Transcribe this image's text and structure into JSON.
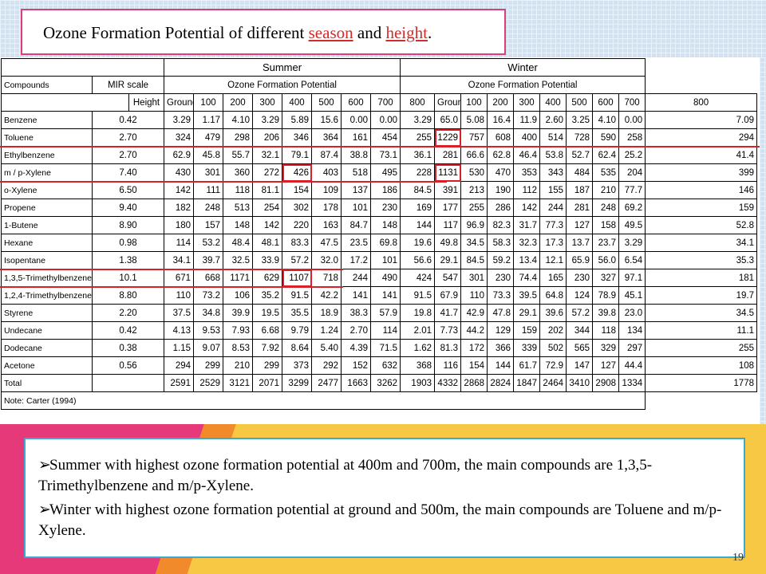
{
  "slide": {
    "title_prefix": "Ozone Formation Potential of different ",
    "title_word1": "season",
    "title_mid": " and ",
    "title_word2": "height",
    "title_suffix": ".",
    "page_number": "19"
  },
  "table": {
    "season_summer": "Summer",
    "season_winter": "Winter",
    "header_compounds": "Compounds",
    "header_mir": "MIR scale",
    "header_ofp_summer": "Ozone Formation Potential",
    "header_ofp_winter": "Ozone Formation Potential",
    "height_label": "Height",
    "heights": [
      "Ground",
      "100",
      "200",
      "300",
      "400",
      "500",
      "600",
      "700",
      "800"
    ],
    "rows": [
      {
        "name": "Benzene",
        "mir": "0.42",
        "summer": [
          "3.29",
          "1.17",
          "4.10",
          "3.29",
          "5.89",
          "15.6",
          "0.00",
          "0.00",
          "3.29"
        ],
        "winter": [
          "65.0",
          "5.08",
          "16.4",
          "11.9",
          "2.60",
          "3.25",
          "4.10",
          "0.00",
          "7.09"
        ]
      },
      {
        "name": "Toluene",
        "mir": "2.70",
        "summer": [
          "324",
          "479",
          "298",
          "206",
          "346",
          "364",
          "161",
          "454",
          "255"
        ],
        "winter": [
          "1229",
          "757",
          "608",
          "400",
          "514",
          "728",
          "590",
          "258",
          "294"
        ]
      },
      {
        "name": "Ethylbenzene",
        "mir": "2.70",
        "summer": [
          "62.9",
          "45.8",
          "55.7",
          "32.1",
          "79.1",
          "87.4",
          "38.8",
          "73.1",
          "36.1"
        ],
        "winter": [
          "281",
          "66.6",
          "62.8",
          "46.4",
          "53.8",
          "52.7",
          "62.4",
          "25.2",
          "41.4"
        ]
      },
      {
        "name": "m / p-Xylene",
        "mir": "7.40",
        "summer": [
          "430",
          "301",
          "360",
          "272",
          "426",
          "403",
          "518",
          "495",
          "228"
        ],
        "winter": [
          "1131",
          "530",
          "470",
          "353",
          "343",
          "484",
          "535",
          "204",
          "399"
        ]
      },
      {
        "name": "o-Xylene",
        "mir": "6.50",
        "summer": [
          "142",
          "111",
          "118",
          "81.1",
          "154",
          "109",
          "137",
          "186",
          "84.5"
        ],
        "winter": [
          "391",
          "213",
          "190",
          "112",
          "155",
          "187",
          "210",
          "77.7",
          "146"
        ]
      },
      {
        "name": "Propene",
        "mir": "9.40",
        "summer": [
          "182",
          "248",
          "513",
          "254",
          "302",
          "178",
          "101",
          "230",
          "169"
        ],
        "winter": [
          "177",
          "255",
          "286",
          "142",
          "244",
          "281",
          "248",
          "69.2",
          "159"
        ]
      },
      {
        "name": "1-Butene",
        "mir": "8.90",
        "summer": [
          "180",
          "157",
          "148",
          "142",
          "220",
          "163",
          "84.7",
          "148",
          "144"
        ],
        "winter": [
          "117",
          "96.9",
          "82.3",
          "31.7",
          "77.3",
          "127",
          "158",
          "49.5",
          "52.8"
        ]
      },
      {
        "name": "Hexane",
        "mir": "0.98",
        "summer": [
          "114",
          "53.2",
          "48.4",
          "48.1",
          "83.3",
          "47.5",
          "23.5",
          "69.8",
          "19.6"
        ],
        "winter": [
          "49.8",
          "34.5",
          "58.3",
          "32.3",
          "17.3",
          "13.7",
          "23.7",
          "3.29",
          "34.1"
        ]
      },
      {
        "name": "Isopentane",
        "mir": "1.38",
        "summer": [
          "34.1",
          "39.7",
          "32.5",
          "33.9",
          "57.2",
          "32.0",
          "17.2",
          "101",
          "56.6"
        ],
        "winter": [
          "29.1",
          "84.5",
          "59.2",
          "13.4",
          "12.1",
          "65.9",
          "56.0",
          "6.54",
          "35.3"
        ]
      },
      {
        "name": "1,3,5-Trimethylbenzene",
        "mir": "10.1",
        "summer": [
          "671",
          "668",
          "1171",
          "629",
          "1107",
          "718",
          "244",
          "490",
          "424"
        ],
        "winter": [
          "547",
          "301",
          "230",
          "74.4",
          "165",
          "230",
          "327",
          "97.1",
          "181"
        ]
      },
      {
        "name": "1,2,4-Trimethylbenzene",
        "mir": "8.80",
        "summer": [
          "110",
          "73.2",
          "106",
          "35.2",
          "91.5",
          "42.2",
          "141",
          "141",
          "91.5"
        ],
        "winter": [
          "67.9",
          "110",
          "73.3",
          "39.5",
          "64.8",
          "124",
          "78.9",
          "45.1",
          "19.7"
        ]
      },
      {
        "name": "Styrene",
        "mir": "2.20",
        "summer": [
          "37.5",
          "34.8",
          "39.9",
          "19.5",
          "35.5",
          "18.9",
          "38.3",
          "57.9",
          "19.8"
        ],
        "winter": [
          "41.7",
          "42.9",
          "47.8",
          "29.1",
          "39.6",
          "57.2",
          "39.8",
          "23.0",
          "34.5"
        ]
      },
      {
        "name": "Undecane",
        "mir": "0.42",
        "summer": [
          "4.13",
          "9.53",
          "7.93",
          "6.68",
          "9.79",
          "1.24",
          "2.70",
          "114",
          "2.01"
        ],
        "winter": [
          "7.73",
          "44.2",
          "129",
          "159",
          "202",
          "344",
          "118",
          "134",
          "11.1"
        ]
      },
      {
        "name": "Dodecane",
        "mir": "0.38",
        "summer": [
          "1.15",
          "9.07",
          "8.53",
          "7.92",
          "8.64",
          "5.40",
          "4.39",
          "71.5",
          "1.62"
        ],
        "winter": [
          "81.3",
          "172",
          "366",
          "339",
          "502",
          "565",
          "329",
          "297",
          "255"
        ]
      },
      {
        "name": "Acetone",
        "mir": "0.56",
        "summer": [
          "294",
          "299",
          "210",
          "299",
          "373",
          "292",
          "152",
          "632",
          "368"
        ],
        "winter": [
          "116",
          "154",
          "144",
          "61.7",
          "72.9",
          "147",
          "127",
          "44.4",
          "108"
        ]
      }
    ],
    "total_label": "Total",
    "total_summer": [
      "2591",
      "2529",
      "3121",
      "2071",
      "3299",
      "2477",
      "1663",
      "3262",
      "1903"
    ],
    "total_winter": [
      "4332",
      "2868",
      "2824",
      "1847",
      "2464",
      "3410",
      "2908",
      "1334",
      "1778"
    ],
    "note": "Note: Carter (1994)"
  },
  "bullets": [
    "Summer with highest ozone formation potential at 400m and 700m, the  main compounds are 1,3,5-Trimethylbenzene and m/p-Xylene.",
    "Winter with highest ozone formation potential at ground and 500m, the  main compounds are Toluene and m/p-Xylene."
  ],
  "colors": {
    "highlight": "#d6202a",
    "title_border": "#d9407a",
    "bullet_border": "#3aa9d6"
  }
}
